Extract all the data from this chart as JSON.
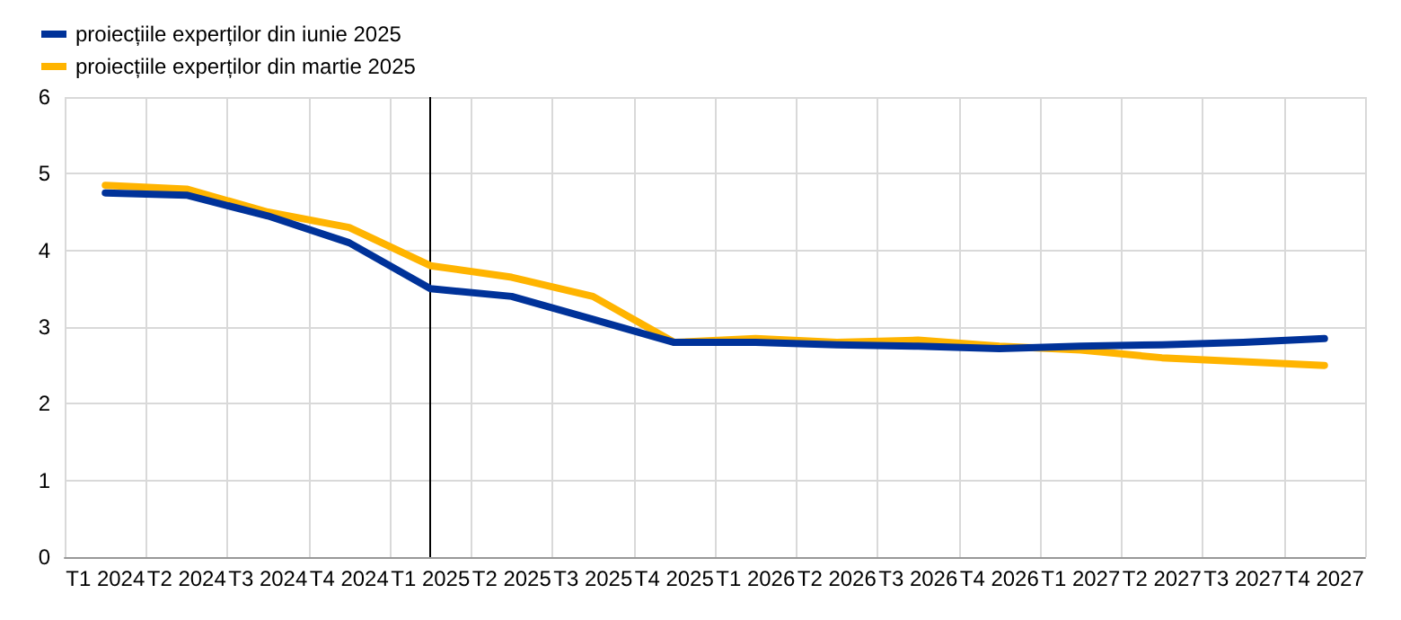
{
  "chart_data": {
    "type": "line",
    "categories": [
      "T1 2024",
      "T2 2024",
      "T3 2024",
      "T4 2024",
      "T1 2025",
      "T2 2025",
      "T3 2025",
      "T4 2025",
      "T1 2026",
      "T2 2026",
      "T3 2026",
      "T4 2026",
      "T1 2027",
      "T2 2027",
      "T3 2027",
      "T4 2027"
    ],
    "series": [
      {
        "name": "proiecțiile experților din iunie 2025",
        "color": "#003299",
        "values": [
          4.75,
          4.72,
          4.45,
          4.1,
          3.5,
          3.4,
          3.1,
          2.8,
          2.8,
          2.77,
          2.75,
          2.72,
          2.75,
          2.77,
          2.8,
          2.85
        ]
      },
      {
        "name": "proiecțiile experților din martie 2025",
        "color": "#ffb400",
        "values": [
          4.85,
          4.8,
          4.5,
          4.3,
          3.8,
          3.65,
          3.4,
          2.8,
          2.85,
          2.8,
          2.83,
          2.75,
          2.7,
          2.6,
          2.55,
          2.5
        ]
      }
    ],
    "ylim": [
      0,
      6
    ],
    "yticks": [
      0,
      1,
      2,
      3,
      4,
      5,
      6
    ],
    "grid": true,
    "legend": "top left",
    "marker": "none",
    "line_style": "solid",
    "ref_lines": [
      {
        "axis": "x",
        "value": "T1 2025",
        "color": "#000000"
      }
    ]
  }
}
